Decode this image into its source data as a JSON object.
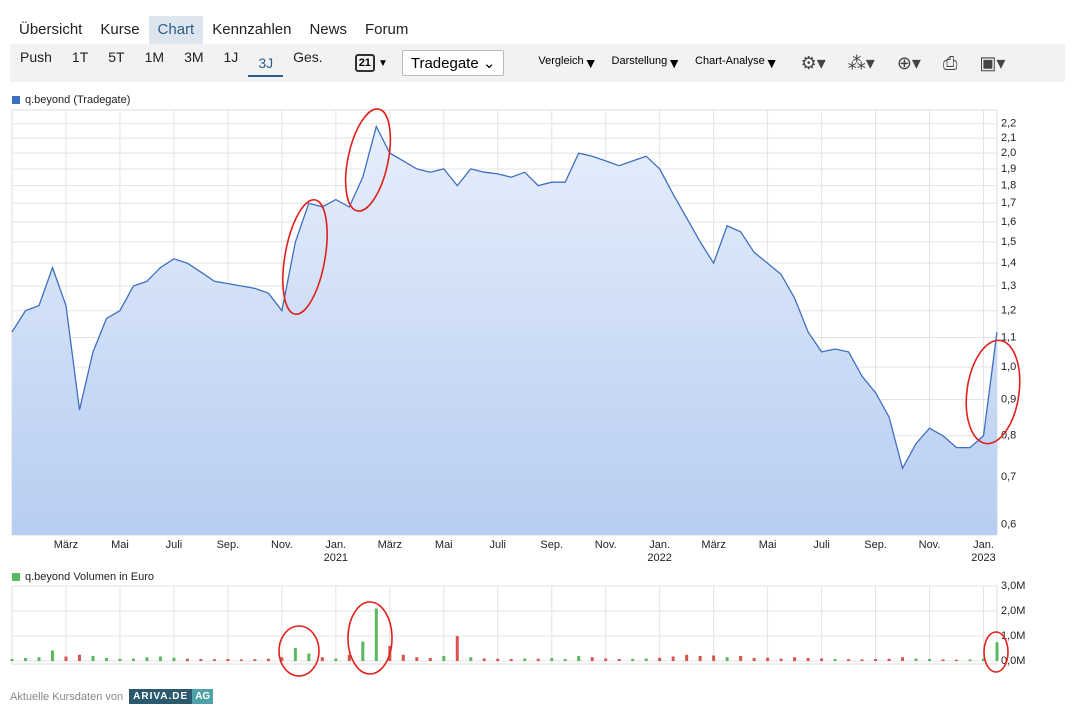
{
  "nav": {
    "tabs": [
      "Übersicht",
      "Kurse",
      "Chart",
      "Kennzahlen",
      "News",
      "Forum"
    ],
    "active": 2
  },
  "toolbar": {
    "ranges": [
      "Push",
      "1T",
      "5T",
      "1M",
      "3M",
      "1J",
      "3J",
      "Ges."
    ],
    "active_range": 6,
    "calendar_day": "21",
    "exchange": "Tradegate",
    "menus": [
      "Vergleich",
      "Darstellung",
      "Chart-Analyse"
    ]
  },
  "chart_data": [
    {
      "type": "line",
      "log_y": true,
      "grid": true,
      "area": true,
      "x": [
        0,
        0.5,
        1,
        1.5,
        2,
        2.5,
        3,
        3.5,
        4,
        4.5,
        5,
        5.5,
        6,
        6.5,
        7,
        7.5,
        8,
        8.5,
        9,
        9.5,
        10,
        10.5,
        11,
        11.5,
        12,
        12.5,
        13,
        13.5,
        14,
        14.5,
        15,
        15.5,
        16,
        16.5,
        17,
        17.5,
        18,
        18.5,
        19,
        19.5,
        20,
        20.5,
        21,
        21.5,
        22,
        22.5,
        23,
        23.5,
        24,
        24.5,
        25,
        25.5,
        26,
        26.5,
        27,
        27.5,
        28,
        28.5,
        29,
        29.5,
        30,
        30.5,
        31,
        31.5,
        32,
        32.5,
        33,
        33.5,
        34,
        34.5,
        35,
        35.5,
        36,
        36.5
      ],
      "series": [
        {
          "name": "q.beyond (Tradegate)",
          "color": "#3d6fc2",
          "values": [
            1.12,
            1.2,
            1.22,
            1.38,
            1.22,
            0.87,
            1.05,
            1.17,
            1.2,
            1.3,
            1.32,
            1.38,
            1.42,
            1.4,
            1.36,
            1.32,
            1.31,
            1.3,
            1.29,
            1.27,
            1.2,
            1.5,
            1.7,
            1.68,
            1.72,
            1.68,
            1.85,
            2.18,
            2.0,
            1.95,
            1.9,
            1.88,
            1.9,
            1.8,
            1.9,
            1.88,
            1.87,
            1.85,
            1.88,
            1.8,
            1.82,
            1.82,
            2.0,
            1.98,
            1.95,
            1.92,
            1.95,
            1.98,
            1.9,
            1.75,
            1.62,
            1.5,
            1.4,
            1.58,
            1.55,
            1.45,
            1.4,
            1.35,
            1.25,
            1.12,
            1.05,
            1.06,
            1.05,
            0.97,
            0.92,
            0.85,
            0.72,
            0.78,
            0.82,
            0.8,
            0.77,
            0.77,
            0.8,
            1.12
          ]
        }
      ],
      "xlim": [
        0,
        36.5
      ],
      "xticks": [
        {
          "value": 2,
          "label": "März"
        },
        {
          "value": 4,
          "label": "Mai"
        },
        {
          "value": 6,
          "label": "Juli"
        },
        {
          "value": 8,
          "label": "Sep."
        },
        {
          "value": 10,
          "label": "Nov."
        },
        {
          "value": 12,
          "label": "Jan."
        },
        {
          "value": 14,
          "label": "März"
        },
        {
          "value": 16,
          "label": "Mai"
        },
        {
          "value": 18,
          "label": "Juli"
        },
        {
          "value": 20,
          "label": "Sep."
        },
        {
          "value": 22,
          "label": "Nov."
        },
        {
          "value": 24,
          "label": "Jan."
        },
        {
          "value": 26,
          "label": "März"
        },
        {
          "value": 28,
          "label": "Mai"
        },
        {
          "value": 30,
          "label": "Juli"
        },
        {
          "value": 32,
          "label": "Sep."
        },
        {
          "value": 34,
          "label": "Nov."
        },
        {
          "value": 36,
          "label": "Jan."
        }
      ],
      "year_labels": [
        {
          "value": 12,
          "label": "2021"
        },
        {
          "value": 24,
          "label": "2022"
        },
        {
          "value": 36,
          "label": "2023"
        }
      ],
      "ylim": [
        0.58,
        2.3
      ],
      "yticks": [
        {
          "value": 0.6,
          "label": "0,6"
        },
        {
          "value": 0.7,
          "label": "0,7"
        },
        {
          "value": 0.8,
          "label": "0,8"
        },
        {
          "value": 0.9,
          "label": "0,9"
        },
        {
          "value": 1.0,
          "label": "1,0"
        },
        {
          "value": 1.1,
          "label": "1,1"
        },
        {
          "value": 1.2,
          "label": "1,2"
        },
        {
          "value": 1.3,
          "label": "1,3"
        },
        {
          "value": 1.4,
          "label": "1,4"
        },
        {
          "value": 1.5,
          "label": "1,5"
        },
        {
          "value": 1.6,
          "label": "1,6"
        },
        {
          "value": 1.7,
          "label": "1,7"
        },
        {
          "value": 1.8,
          "label": "1,8"
        },
        {
          "value": 1.9,
          "label": "1,9"
        },
        {
          "value": 2.0,
          "label": "2,0"
        },
        {
          "value": 2.1,
          "label": "2,1"
        },
        {
          "value": 2.2,
          "label": "2,2"
        }
      ]
    },
    {
      "type": "bar",
      "grid": true,
      "down_color": "#d9534f",
      "x": [
        0,
        0.5,
        1,
        1.5,
        2,
        2.5,
        3,
        3.5,
        4,
        4.5,
        5,
        5.5,
        6,
        6.5,
        7,
        7.5,
        8,
        8.5,
        9,
        9.5,
        10,
        10.5,
        11,
        11.5,
        12,
        12.5,
        13,
        13.5,
        14,
        14.5,
        15,
        15.5,
        16,
        16.5,
        17,
        17.5,
        18,
        18.5,
        19,
        19.5,
        20,
        20.5,
        21,
        21.5,
        22,
        22.5,
        23,
        23.5,
        24,
        24.5,
        25,
        25.5,
        26,
        26.5,
        27,
        27.5,
        28,
        28.5,
        29,
        29.5,
        30,
        30.5,
        31,
        31.5,
        32,
        32.5,
        33,
        33.5,
        34,
        34.5,
        35,
        35.5,
        36,
        36.5
      ],
      "series": [
        {
          "name": "q.beyond Volumen in Euro",
          "color": "#5cb85c",
          "values": [
            80000,
            120000,
            150000,
            420000,
            180000,
            250000,
            200000,
            120000,
            90000,
            100000,
            150000,
            180000,
            130000,
            90000,
            80000,
            70000,
            80000,
            60000,
            70000,
            90000,
            150000,
            520000,
            300000,
            150000,
            100000,
            250000,
            780000,
            2100000,
            600000,
            250000,
            150000,
            120000,
            200000,
            1000000,
            150000,
            100000,
            90000,
            80000,
            100000,
            90000,
            120000,
            80000,
            200000,
            150000,
            100000,
            80000,
            90000,
            100000,
            130000,
            180000,
            250000,
            200000,
            220000,
            150000,
            200000,
            120000,
            130000,
            90000,
            150000,
            120000,
            100000,
            80000,
            70000,
            60000,
            80000,
            90000,
            150000,
            100000,
            80000,
            60000,
            50000,
            60000,
            100000,
            750000
          ]
        }
      ],
      "xlim": [
        0,
        36.5
      ],
      "xticks": [
        2,
        4,
        6,
        8,
        10,
        12,
        14,
        16,
        18,
        20,
        22,
        24,
        26,
        28,
        30,
        32,
        34,
        36
      ],
      "ylim": [
        -120000,
        3000000
      ],
      "yticks": [
        {
          "value": 0,
          "label": "0,0M"
        },
        {
          "value": 1000000,
          "label": "1,0M"
        },
        {
          "value": 2000000,
          "label": "2,0M"
        },
        {
          "value": 3000000,
          "label": "3,0M"
        }
      ]
    }
  ],
  "footer": {
    "text": "Aktuelle Kursdaten von",
    "brand": "ARIVA.DE",
    "brand_suffix": "AG"
  }
}
